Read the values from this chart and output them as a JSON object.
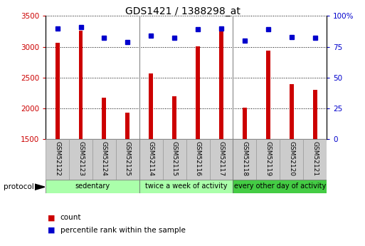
{
  "title": "GDS1421 / 1388298_at",
  "samples": [
    "GSM52122",
    "GSM52123",
    "GSM52124",
    "GSM52125",
    "GSM52114",
    "GSM52115",
    "GSM52116",
    "GSM52117",
    "GSM52118",
    "GSM52119",
    "GSM52120",
    "GSM52121"
  ],
  "counts": [
    3060,
    3260,
    2170,
    1930,
    2560,
    2200,
    3010,
    3330,
    2010,
    2940,
    2390,
    2300
  ],
  "percentile_ranks": [
    90,
    91,
    82,
    79,
    84,
    82,
    89,
    90,
    80,
    89,
    83,
    82
  ],
  "ylim_left": [
    1500,
    3500
  ],
  "ylim_right": [
    0,
    100
  ],
  "yticks_left": [
    1500,
    2000,
    2500,
    3000,
    3500
  ],
  "yticks_right": [
    0,
    25,
    50,
    75,
    100
  ],
  "bar_color": "#cc0000",
  "marker_color": "#0000cc",
  "groups": [
    {
      "label": "sedentary",
      "start": 0,
      "end": 4,
      "color": "#aaffaa"
    },
    {
      "label": "twice a week of activity",
      "start": 4,
      "end": 8,
      "color": "#aaffaa"
    },
    {
      "label": "every other day of activity",
      "start": 8,
      "end": 12,
      "color": "#44cc44"
    }
  ],
  "group_dividers": [
    4,
    8
  ],
  "protocol_label": "protocol",
  "legend_count_label": "count",
  "legend_percentile_label": "percentile rank within the sample",
  "sample_box_color": "#cccccc",
  "sample_box_edge": "#999999"
}
